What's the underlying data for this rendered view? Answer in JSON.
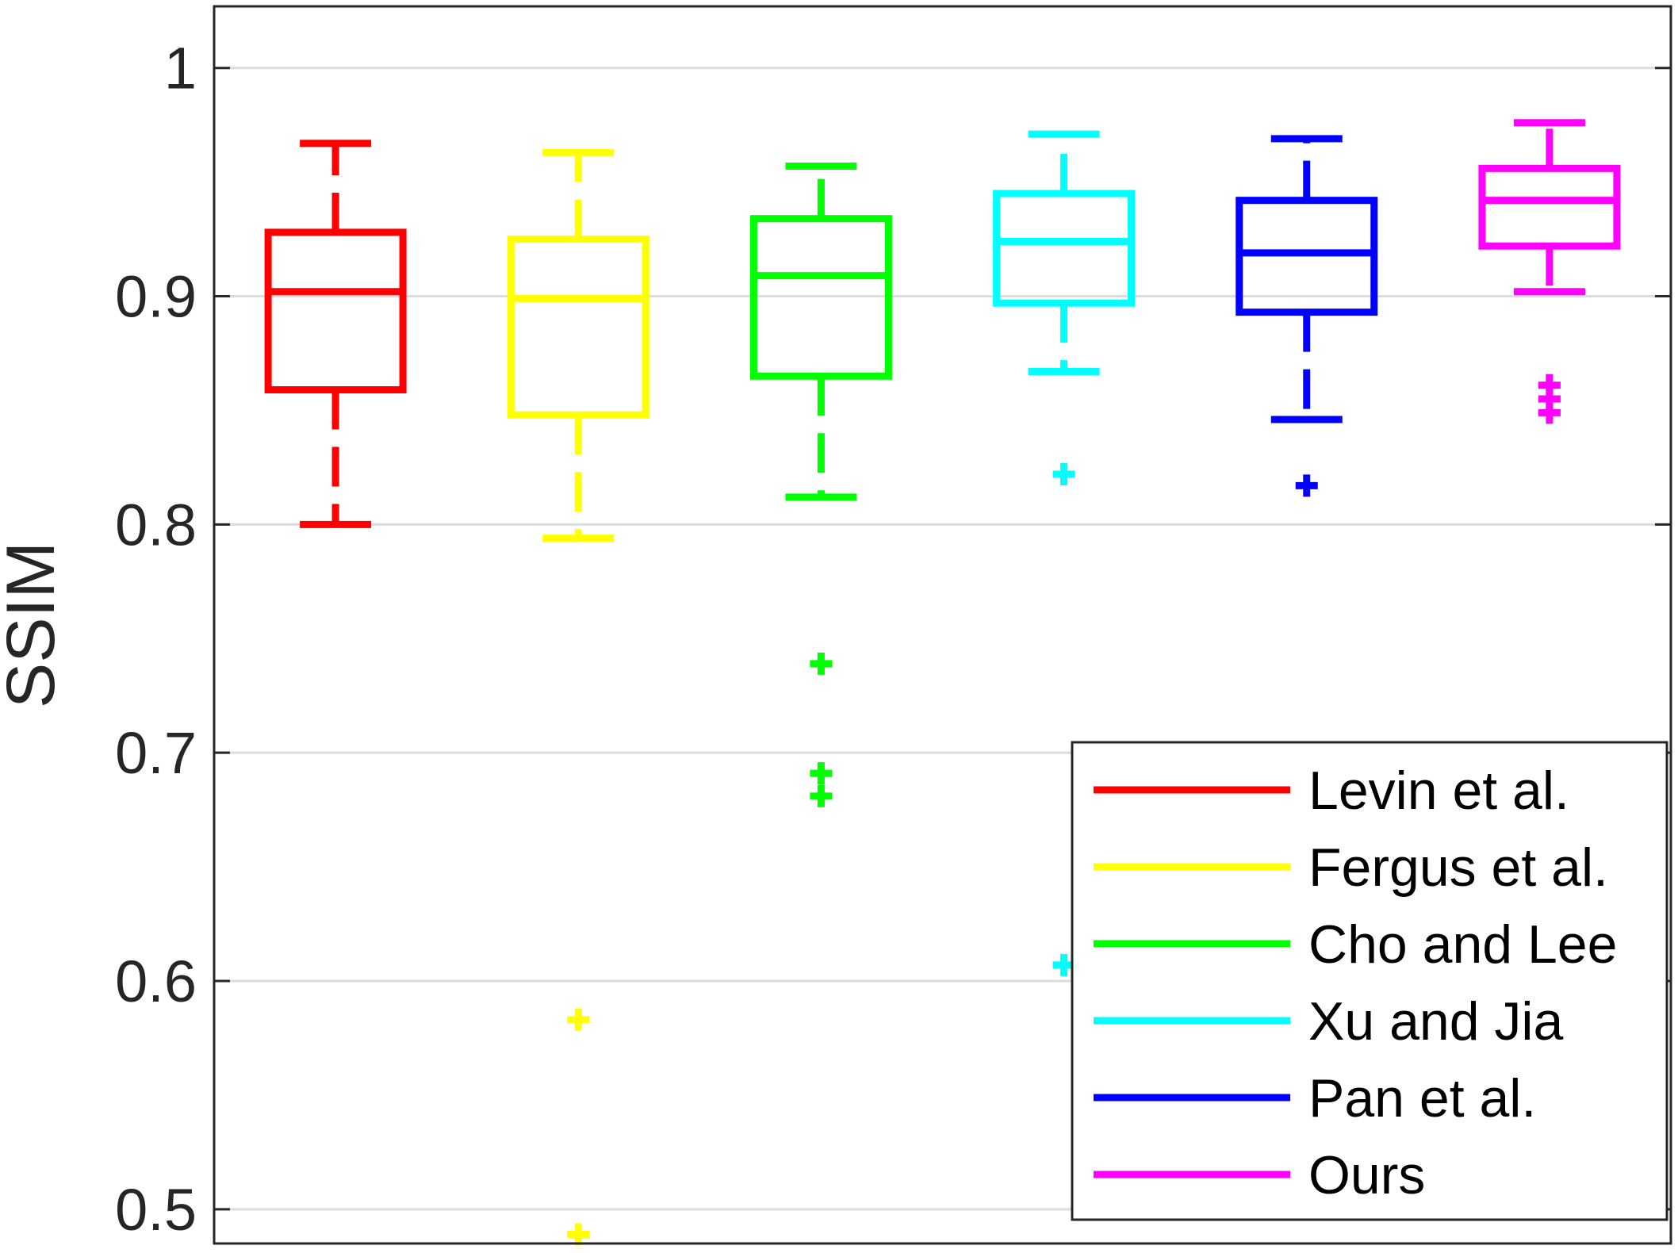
{
  "chart_data": {
    "type": "boxplot",
    "title": "",
    "xlabel": "",
    "ylabel": "SSIM",
    "ylim": [
      0.485,
      1.027
    ],
    "yticks": [
      0.5,
      0.6,
      0.7,
      0.8,
      0.9,
      1
    ],
    "ytick_labels": [
      "0.5",
      "0.6",
      "0.7",
      "0.8",
      "0.9",
      "1"
    ],
    "grid": "y-major",
    "legend_location": "bottom-right",
    "series": [
      {
        "name": "Levin et al.",
        "color": "#ff0000",
        "whisker_low": 0.8,
        "q1": 0.859,
        "median": 0.902,
        "q3": 0.928,
        "whisker_high": 0.967,
        "outliers": []
      },
      {
        "name": "Fergus et al.",
        "color": "#ffff00",
        "whisker_low": 0.794,
        "q1": 0.848,
        "median": 0.899,
        "q3": 0.925,
        "whisker_high": 0.963,
        "outliers": [
          0.583,
          0.489
        ]
      },
      {
        "name": "Cho and Lee",
        "color": "#00ff00",
        "whisker_low": 0.812,
        "q1": 0.865,
        "median": 0.909,
        "q3": 0.934,
        "whisker_high": 0.957,
        "outliers": [
          0.739,
          0.691,
          0.681
        ]
      },
      {
        "name": "Xu and Jia",
        "color": "#00ffff",
        "whisker_low": 0.867,
        "q1": 0.897,
        "median": 0.924,
        "q3": 0.945,
        "whisker_high": 0.971,
        "outliers": [
          0.822,
          0.607
        ]
      },
      {
        "name": "Pan et al.",
        "color": "#0000ff",
        "whisker_low": 0.846,
        "q1": 0.893,
        "median": 0.919,
        "q3": 0.942,
        "whisker_high": 0.969,
        "outliers": [
          0.817
        ]
      },
      {
        "name": "Ours",
        "color": "#ff00ff",
        "whisker_low": 0.902,
        "q1": 0.922,
        "median": 0.942,
        "q3": 0.956,
        "whisker_high": 0.976,
        "outliers": [
          0.861,
          0.855,
          0.849
        ]
      }
    ]
  }
}
